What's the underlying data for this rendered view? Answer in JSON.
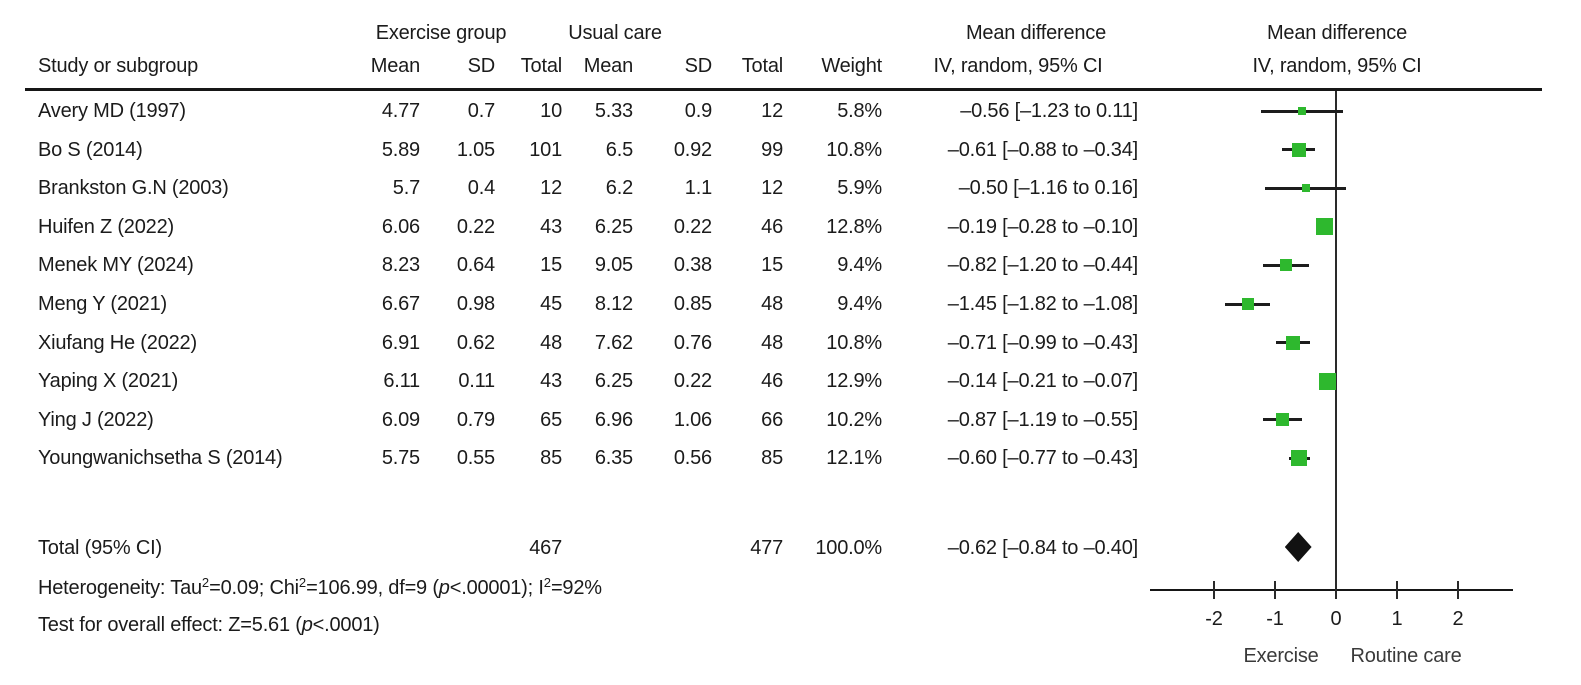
{
  "header": {
    "study_col": "Study or subgroup",
    "exercise_group": "Exercise group",
    "usual_care": "Usual care",
    "mean_diff_left": "Mean difference",
    "iv_left": "IV, random, 95% CI",
    "mean_diff_right": "Mean difference",
    "iv_right": "IV, random, 95% CI",
    "mean1": "Mean",
    "sd1": "SD",
    "total1": "Total",
    "mean2": "Mean",
    "sd2": "SD",
    "total2": "Total",
    "weight": "Weight"
  },
  "chart_data": {
    "type": "forest",
    "effect_measure": "Mean difference, IV, random, 95% CI",
    "studies": [
      {
        "label": "Avery MD (1997)",
        "mean1": "4.77",
        "sd1": "0.7",
        "total1": "10",
        "mean2": "5.33",
        "sd2": "0.9",
        "total2": "12",
        "weight": "5.8%",
        "weight_pct": 5.8,
        "md": -0.56,
        "ci_low": -1.23,
        "ci_high": 0.11,
        "ci_text": "–0.56 [–1.23 to 0.11]"
      },
      {
        "label": "Bo S (2014)",
        "mean1": "5.89",
        "sd1": "1.05",
        "total1": "101",
        "mean2": "6.5",
        "sd2": "0.92",
        "total2": "99",
        "weight": "10.8%",
        "weight_pct": 10.8,
        "md": -0.61,
        "ci_low": -0.88,
        "ci_high": -0.34,
        "ci_text": "–0.61 [–0.88 to –0.34]"
      },
      {
        "label": "Brankston G.N (2003)",
        "mean1": "5.7",
        "sd1": "0.4",
        "total1": "12",
        "mean2": "6.2",
        "sd2": "1.1",
        "total2": "12",
        "weight": "5.9%",
        "weight_pct": 5.9,
        "md": -0.5,
        "ci_low": -1.16,
        "ci_high": 0.16,
        "ci_text": "–0.50 [–1.16 to 0.16]"
      },
      {
        "label": "Huifen Z (2022)",
        "mean1": "6.06",
        "sd1": "0.22",
        "total1": "43",
        "mean2": "6.25",
        "sd2": "0.22",
        "total2": "46",
        "weight": "12.8%",
        "weight_pct": 12.8,
        "md": -0.19,
        "ci_low": -0.28,
        "ci_high": -0.1,
        "ci_text": "–0.19 [–0.28 to –0.10]"
      },
      {
        "label": "Menek MY (2024)",
        "mean1": "8.23",
        "sd1": "0.64",
        "total1": "15",
        "mean2": "9.05",
        "sd2": "0.38",
        "total2": "15",
        "weight": "9.4%",
        "weight_pct": 9.4,
        "md": -0.82,
        "ci_low": -1.2,
        "ci_high": -0.44,
        "ci_text": "–0.82 [–1.20 to –0.44]"
      },
      {
        "label": "Meng Y (2021)",
        "mean1": "6.67",
        "sd1": "0.98",
        "total1": "45",
        "mean2": "8.12",
        "sd2": "0.85",
        "total2": "48",
        "weight": "9.4%",
        "weight_pct": 9.4,
        "md": -1.45,
        "ci_low": -1.82,
        "ci_high": -1.08,
        "ci_text": "–1.45 [–1.82 to –1.08]"
      },
      {
        "label": "Xiufang He (2022)",
        "mean1": "6.91",
        "sd1": "0.62",
        "total1": "48",
        "mean2": "7.62",
        "sd2": "0.76",
        "total2": "48",
        "weight": "10.8%",
        "weight_pct": 10.8,
        "md": -0.71,
        "ci_low": -0.99,
        "ci_high": -0.43,
        "ci_text": "–0.71 [–0.99 to –0.43]"
      },
      {
        "label": "Yaping X (2021)",
        "mean1": "6.11",
        "sd1": "0.11",
        "total1": "43",
        "mean2": "6.25",
        "sd2": "0.22",
        "total2": "46",
        "weight": "12.9%",
        "weight_pct": 12.9,
        "md": -0.14,
        "ci_low": -0.21,
        "ci_high": -0.07,
        "ci_text": "–0.14 [–0.21 to –0.07]"
      },
      {
        "label": "Ying J (2022)",
        "mean1": "6.09",
        "sd1": "0.79",
        "total1": "65",
        "mean2": "6.96",
        "sd2": "1.06",
        "total2": "66",
        "weight": "10.2%",
        "weight_pct": 10.2,
        "md": -0.87,
        "ci_low": -1.19,
        "ci_high": -0.55,
        "ci_text": "–0.87 [–1.19 to –0.55]"
      },
      {
        "label": "Youngwanichsetha S (2014)",
        "mean1": "5.75",
        "sd1": "0.55",
        "total1": "85",
        "mean2": "6.35",
        "sd2": "0.56",
        "total2": "85",
        "weight": "12.1%",
        "weight_pct": 12.1,
        "md": -0.6,
        "ci_low": -0.77,
        "ci_high": -0.43,
        "ci_text": "–0.60 [–0.77 to –0.43]"
      }
    ],
    "total": {
      "label": "Total (95% CI)",
      "total1": "467",
      "total2": "477",
      "weight": "100.0%",
      "md": -0.62,
      "ci_low": -0.84,
      "ci_high": -0.4,
      "ci_text": "–0.62 [–0.84 to –0.40]"
    },
    "x_axis": {
      "ticks": [
        -2,
        -1,
        0,
        1,
        2
      ],
      "tick_labels": [
        "-2",
        "-1",
        "0",
        "1",
        "2"
      ],
      "xlim": [
        -3.05,
        2.9
      ],
      "left_label": "Exercise",
      "right_label": "Routine care"
    },
    "marker_color": "#2eb82e",
    "diamond_color": "#111111"
  },
  "footer": {
    "het": {
      "p1": "Heterogeneity: Tau",
      "s1": "2",
      "p2": "=0.09; Chi",
      "s2": "2",
      "p3": "=106.99, df=9 (",
      "pi": "p",
      "p4": "<.00001); I",
      "s3": "2",
      "p5": "=92%"
    },
    "effect": {
      "p1": "Test for overall effect: Z=5.61 (",
      "pi": "p",
      "p2": "<.0001)"
    }
  }
}
